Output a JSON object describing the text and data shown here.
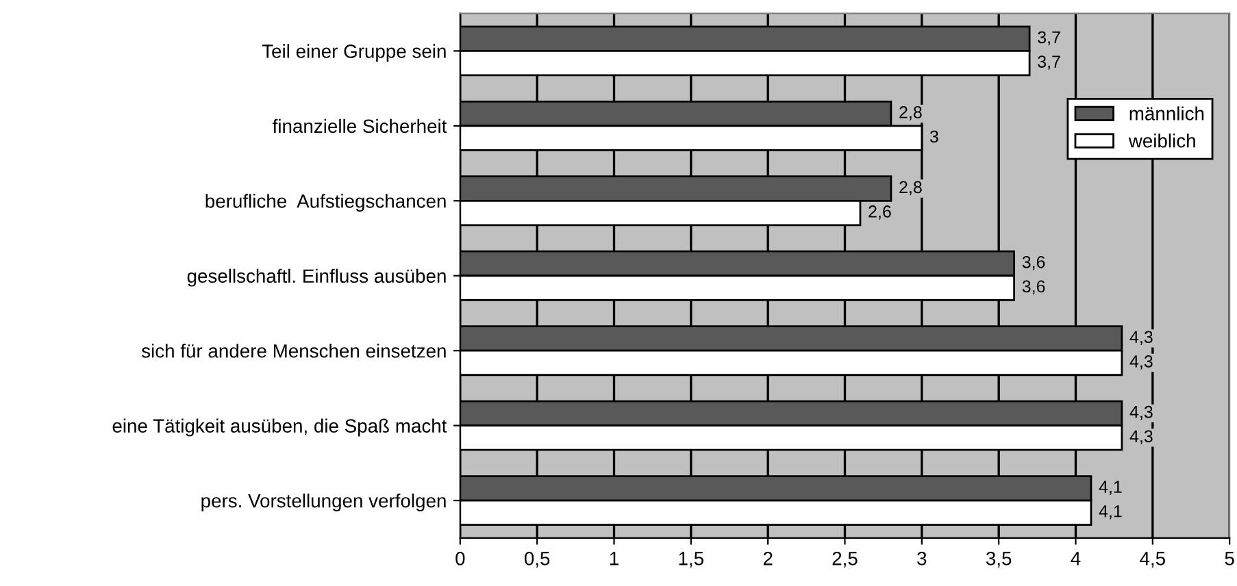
{
  "chart_data": {
    "type": "bar",
    "orientation": "horizontal",
    "categories": [
      "Teil einer Gruppe sein",
      "finanzielle Sicherheit",
      "berufliche  Aufstiegschancen",
      "gesellschaftl. Einfluss ausüben",
      "sich für andere Menschen einsetzen",
      "eine Tätigkeit ausüben, die Spaß macht",
      "pers. Vorstellungen verfolgen"
    ],
    "series": [
      {
        "name": "männlich",
        "color": "#595959",
        "values": [
          3.7,
          2.8,
          2.8,
          3.6,
          4.3,
          4.3,
          4.1
        ],
        "value_labels": [
          "3,7",
          "2,8",
          "2,8",
          "3,6",
          "4,3",
          "4,3",
          "4,1"
        ]
      },
      {
        "name": "weiblich",
        "color": "#ffffff",
        "values": [
          3.7,
          3,
          2.6,
          3.6,
          4.3,
          4.3,
          4.1
        ],
        "value_labels": [
          "3,7",
          "3",
          "2,6",
          "3,6",
          "4,3",
          "4,3",
          "4,1"
        ]
      }
    ],
    "xlim": [
      0,
      5
    ],
    "xticks": [
      0,
      {
        "value": 0.5,
        "label": "0,5"
      },
      1,
      {
        "value": 1.5,
        "label": "1,5"
      },
      2,
      {
        "value": 2.5,
        "label": "2,5"
      },
      3,
      {
        "value": 3.5,
        "label": "3,5"
      },
      4,
      {
        "value": 4.5,
        "label": "4,5"
      },
      5
    ],
    "grid": "x",
    "legend": "right"
  }
}
